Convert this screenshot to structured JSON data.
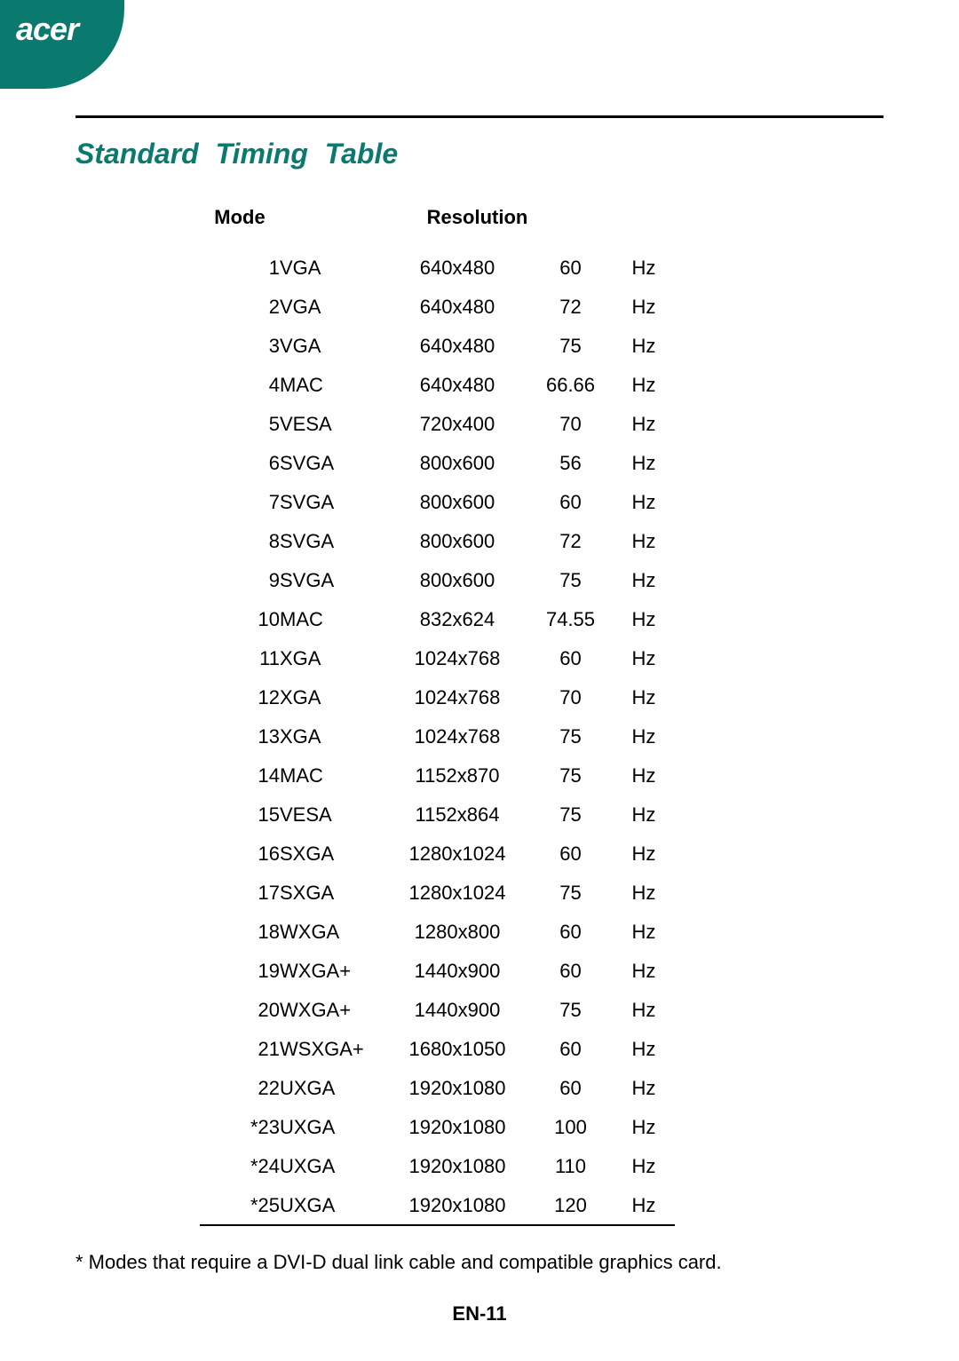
{
  "brand": "acer",
  "title": "Standard Timing Table",
  "table": {
    "headers": {
      "mode": "Mode",
      "resolution": "Resolution"
    },
    "rows": [
      {
        "mode": "1",
        "std": "VGA",
        "res": "640x480",
        "rate": "60",
        "unit": "Hz"
      },
      {
        "mode": "2",
        "std": "VGA",
        "res": "640x480",
        "rate": "72",
        "unit": "Hz"
      },
      {
        "mode": "3",
        "std": "VGA",
        "res": "640x480",
        "rate": "75",
        "unit": "Hz"
      },
      {
        "mode": "4",
        "std": "MAC",
        "res": "640x480",
        "rate": "66.66",
        "unit": "Hz"
      },
      {
        "mode": "5",
        "std": "VESA",
        "res": "720x400",
        "rate": "70",
        "unit": "Hz"
      },
      {
        "mode": "6",
        "std": "SVGA",
        "res": "800x600",
        "rate": "56",
        "unit": "Hz"
      },
      {
        "mode": "7",
        "std": "SVGA",
        "res": "800x600",
        "rate": "60",
        "unit": "Hz"
      },
      {
        "mode": "8",
        "std": "SVGA",
        "res": "800x600",
        "rate": "72",
        "unit": "Hz"
      },
      {
        "mode": "9",
        "std": "SVGA",
        "res": "800x600",
        "rate": "75",
        "unit": "Hz"
      },
      {
        "mode": "10",
        "std": "MAC",
        "res": "832x624",
        "rate": "74.55",
        "unit": "Hz"
      },
      {
        "mode": "11",
        "std": "XGA",
        "res": "1024x768",
        "rate": "60",
        "unit": "Hz"
      },
      {
        "mode": "12",
        "std": "XGA",
        "res": "1024x768",
        "rate": "70",
        "unit": "Hz"
      },
      {
        "mode": "13",
        "std": "XGA",
        "res": "1024x768",
        "rate": "75",
        "unit": "Hz"
      },
      {
        "mode": "14",
        "std": "MAC",
        "res": "1152x870",
        "rate": "75",
        "unit": "Hz"
      },
      {
        "mode": "15",
        "std": "VESA",
        "res": "1152x864",
        "rate": "75",
        "unit": "Hz"
      },
      {
        "mode": "16",
        "std": "SXGA",
        "res": "1280x1024",
        "rate": "60",
        "unit": "Hz"
      },
      {
        "mode": "17",
        "std": "SXGA",
        "res": "1280x1024",
        "rate": "75",
        "unit": "Hz"
      },
      {
        "mode": "18",
        "std": "WXGA",
        "res": "1280x800",
        "rate": "60",
        "unit": "Hz"
      },
      {
        "mode": "19",
        "std": "WXGA+",
        "res": "1440x900",
        "rate": "60",
        "unit": "Hz"
      },
      {
        "mode": "20",
        "std": "WXGA+",
        "res": "1440x900",
        "rate": "75",
        "unit": "Hz"
      },
      {
        "mode": "21",
        "std": "WSXGA+",
        "res": "1680x1050",
        "rate": "60",
        "unit": "Hz"
      },
      {
        "mode": "22",
        "std": "UXGA",
        "res": "1920x1080",
        "rate": "60",
        "unit": "Hz"
      },
      {
        "mode": "*23",
        "std": "UXGA",
        "res": "1920x1080",
        "rate": "100",
        "unit": "Hz"
      },
      {
        "mode": "*24",
        "std": "UXGA",
        "res": "1920x1080",
        "rate": "110",
        "unit": "Hz"
      },
      {
        "mode": "*25",
        "std": "UXGA",
        "res": "1920x1080",
        "rate": "120",
        "unit": "Hz"
      }
    ]
  },
  "footnote": "* Modes that require a DVI-D dual link cable and compatible graphics card.",
  "page_number": "EN-11",
  "colors": {
    "accent": "#0a7a6f",
    "text": "#000000",
    "background": "#ffffff"
  }
}
